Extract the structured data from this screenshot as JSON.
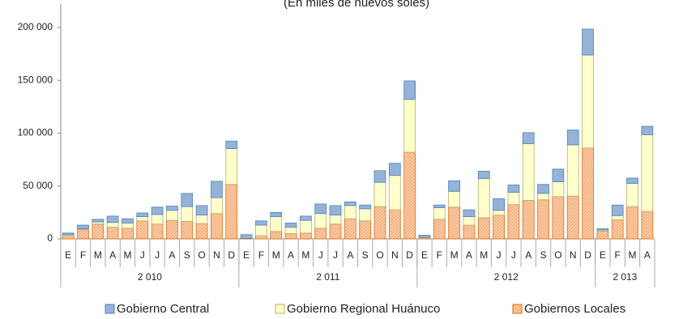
{
  "chart_data": {
    "type": "stacked_bar",
    "subtitle": "(En miles de nuevos soles)",
    "categories": [
      "E",
      "F",
      "M",
      "A",
      "M",
      "J",
      "J",
      "A",
      "S",
      "O",
      "N",
      "D",
      "E",
      "F",
      "M",
      "A",
      "M",
      "J",
      "J",
      "A",
      "S",
      "O",
      "N",
      "D",
      "E",
      "F",
      "M",
      "A",
      "M",
      "J",
      "J",
      "A",
      "S",
      "O",
      "N",
      "D",
      "E",
      "F",
      "M",
      "A"
    ],
    "groups": [
      "2 010",
      "2 011",
      "2 012",
      "2 013"
    ],
    "group_sizes": [
      12,
      12,
      12,
      4
    ],
    "series": [
      {
        "name": "Gobierno Central",
        "color": "#95b3d7",
        "stroke": "#4f81bd",
        "values": [
          1500,
          3500,
          2500,
          6000,
          4000,
          3500,
          7000,
          4000,
          12500,
          9000,
          15500,
          7000,
          3500,
          4000,
          4000,
          4000,
          4000,
          9000,
          9000,
          3500,
          3500,
          11000,
          11500,
          17500,
          2000,
          2500,
          10000,
          6500,
          7000,
          11000,
          7000,
          10500,
          8500,
          12000,
          14000,
          24500,
          1000,
          10000,
          5000,
          8000
        ]
      },
      {
        "name": "Gobierno Regional Huánuco",
        "color": "#ffffcc",
        "stroke": "#b8ad6a",
        "values": [
          1000,
          500,
          2000,
          4500,
          5000,
          4000,
          9000,
          9500,
          14000,
          8000,
          15000,
          34000,
          0,
          10000,
          14000,
          6000,
          12000,
          14000,
          8500,
          12500,
          11500,
          23000,
          32500,
          50000,
          500,
          11000,
          15000,
          8000,
          37000,
          4500,
          11500,
          53500,
          6000,
          14000,
          48500,
          88000,
          1000,
          4000,
          22000,
          72500
        ]
      },
      {
        "name": "Gobiernos Locales",
        "color": "#f9c9a3",
        "stroke": "#e46c0a",
        "values": [
          3000,
          9000,
          14000,
          11000,
          10000,
          17000,
          14000,
          17500,
          16500,
          14500,
          24000,
          51500,
          500,
          3000,
          7000,
          5000,
          5500,
          10000,
          14000,
          19000,
          17000,
          30500,
          27500,
          82000,
          1000,
          18500,
          30000,
          13000,
          20000,
          22500,
          32500,
          36500,
          37000,
          40000,
          40500,
          86000,
          7500,
          18000,
          30500,
          26000
        ]
      }
    ],
    "ylim": [
      0,
      200000
    ],
    "yticks": [
      0,
      {
        "value": 50000,
        "label": "50 000"
      },
      {
        "value": 100000,
        "label": "100 000"
      },
      {
        "value": 150000,
        "label": "150 000"
      },
      {
        "value": 200000,
        "label": "200 000"
      }
    ],
    "legend": "bottom"
  }
}
